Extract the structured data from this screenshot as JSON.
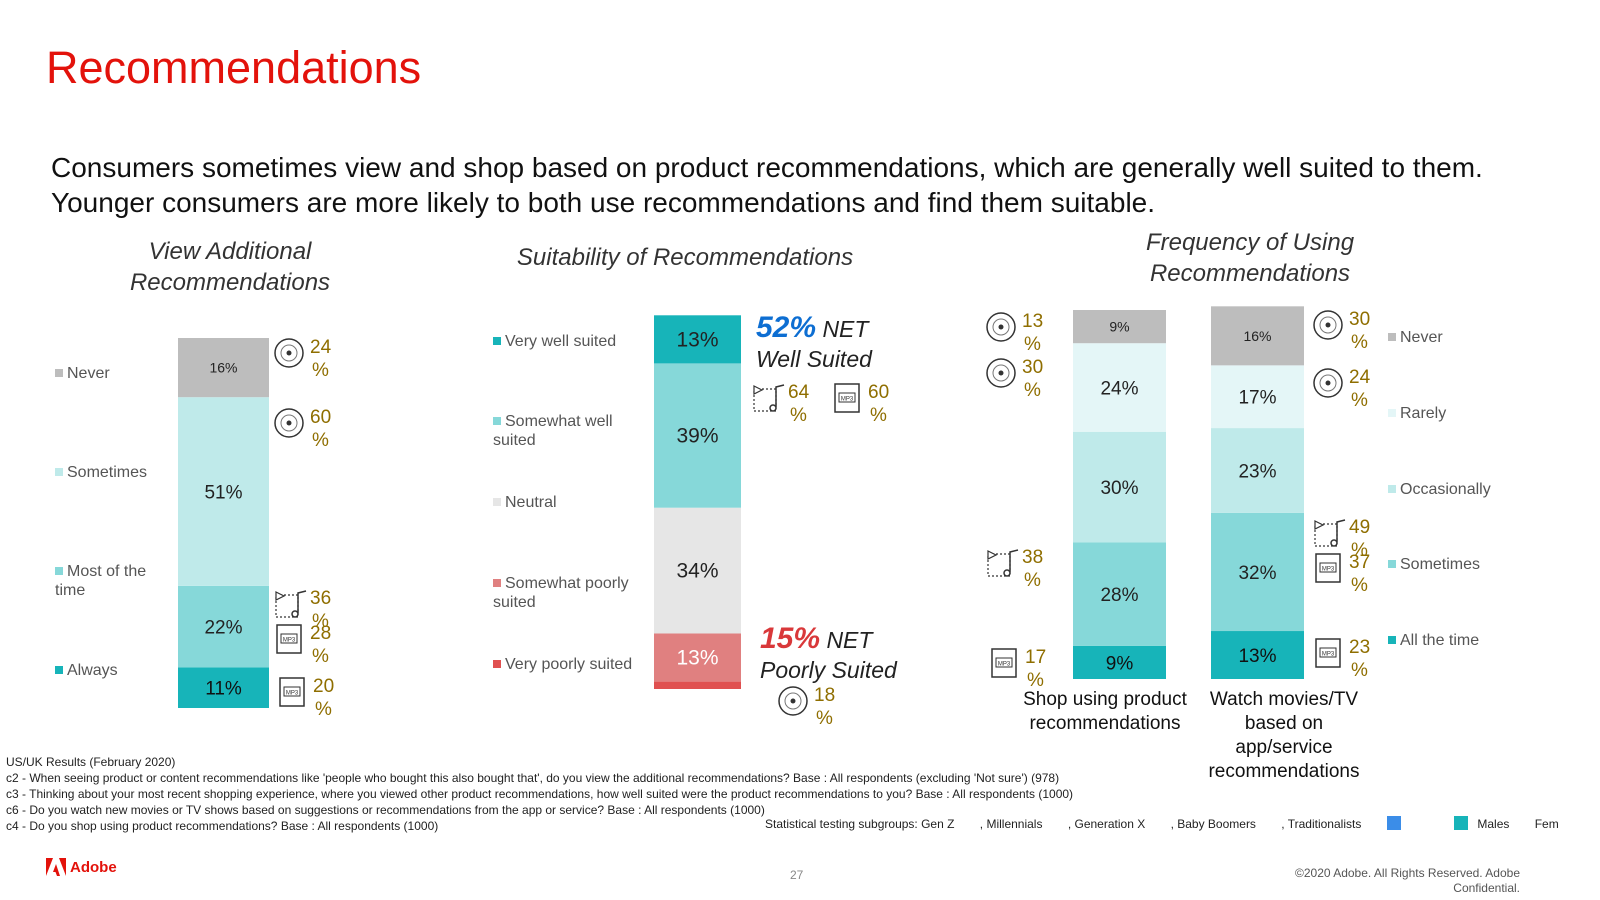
{
  "title": "Recommendations",
  "subtitle": "Consumers sometimes view and shop based on product recommendations, which are generally well suited to them.  Younger consumers are more likely to both use recommendations and find them suitable.",
  "colors": {
    "title_red": "#e3120b",
    "net_blue": "#0d6ed2",
    "net_red": "#d9383a",
    "annotation_gold": "#8f6e00",
    "never_gray": "#bdbdbd",
    "rarely": "#e4f6f7",
    "light_teal": "#bfeaea",
    "mid_teal": "#86d8d9",
    "dark_teal": "#17b4b9",
    "neutral": "#e6e6e6",
    "somewhat_poor": "#e08080",
    "very_poor": "#e05050"
  },
  "charts": {
    "view": {
      "title": "View Additional Recommendations",
      "legend": [
        "Never",
        "Sometimes",
        "Most of the time",
        "Always"
      ]
    },
    "suitability": {
      "title": "Suitability of Recommendations",
      "legend": [
        "Very well suited",
        "Somewhat well suited",
        "Neutral",
        "Somewhat poorly suited",
        "Very poorly suited"
      ],
      "net_well_pct": "52%",
      "net_well_text1": "NET",
      "net_well_text2": "Well Suited",
      "net_poor_pct": "15%",
      "net_poor_text1": "NET",
      "net_poor_text2": "Poorly Suited"
    },
    "frequency": {
      "title": "Frequency of Using Recommendations",
      "legend": [
        "Never",
        "Rarely",
        "Occasionally",
        "Sometimes",
        "All the time"
      ],
      "categories": [
        "Shop using product recommendations",
        "Watch movies/TV based on app/service recommendations"
      ]
    }
  },
  "chart_data": [
    {
      "type": "bar",
      "stacked": true,
      "title": "View Additional Recommendations",
      "series": [
        {
          "name": "Always",
          "values": [
            11
          ],
          "label": "11%"
        },
        {
          "name": "Most of the time",
          "values": [
            22
          ],
          "label": "22%"
        },
        {
          "name": "Sometimes",
          "values": [
            51
          ],
          "label": "51%"
        },
        {
          "name": "Never",
          "values": [
            16
          ],
          "label": "16%"
        }
      ],
      "annotations": [
        {
          "segment": "Never",
          "icon": "vinyl-record-icon",
          "text": "24 %"
        },
        {
          "segment": "Sometimes",
          "icon": "vinyl-record-icon",
          "text": "60 %"
        },
        {
          "segment": "Most of the time",
          "icon": "cassette-icon",
          "text": "36 %"
        },
        {
          "segment": "Most of the time",
          "icon": "mp3-player-icon",
          "text": "28 %"
        },
        {
          "segment": "Always",
          "icon": "mp3-player-icon",
          "text": "20 %"
        }
      ]
    },
    {
      "type": "bar",
      "stacked": true,
      "title": "Suitability of Recommendations",
      "series": [
        {
          "name": "Very poorly suited",
          "values": [
            2
          ],
          "label": ""
        },
        {
          "name": "Somewhat poorly suited",
          "values": [
            13
          ],
          "label": "13%"
        },
        {
          "name": "Neutral",
          "values": [
            34
          ],
          "label": "34%"
        },
        {
          "name": "Somewhat well suited",
          "values": [
            39
          ],
          "label": "39%"
        },
        {
          "name": "Very well suited",
          "values": [
            13
          ],
          "label": "13%"
        }
      ],
      "annotations": [
        {
          "segment": "NET Well Suited",
          "icon": "cassette-icon",
          "text": "64 %"
        },
        {
          "segment": "NET Well Suited",
          "icon": "mp3-player-icon",
          "text": "60 %"
        },
        {
          "segment": "NET Poorly Suited",
          "icon": "vinyl-record-icon",
          "text": "18 %"
        }
      ]
    },
    {
      "type": "bar",
      "stacked": true,
      "title": "Frequency of Using Recommendations",
      "categories": [
        "Shop using product recommendations",
        "Watch movies/TV based on app/service recommendations"
      ],
      "series": [
        {
          "name": "All the time",
          "values": [
            9,
            13
          ],
          "labels": [
            "9%",
            "13%"
          ]
        },
        {
          "name": "Sometimes",
          "values": [
            28,
            32
          ],
          "labels": [
            "28%",
            "32%"
          ]
        },
        {
          "name": "Occasionally",
          "values": [
            30,
            23
          ],
          "labels": [
            "30%",
            "23%"
          ]
        },
        {
          "name": "Rarely",
          "values": [
            24,
            17
          ],
          "labels": [
            "24%",
            "17%"
          ]
        },
        {
          "name": "Never",
          "values": [
            9,
            16
          ],
          "labels": [
            "9%",
            "16%"
          ]
        }
      ],
      "annotations": [
        {
          "category": 0,
          "segment": "Never",
          "icon": "vinyl-record-icon",
          "text": "13 %"
        },
        {
          "category": 0,
          "segment": "Rarely",
          "icon": "vinyl-record-icon",
          "text": "30 %"
        },
        {
          "category": 0,
          "segment": "Sometimes",
          "icon": "cassette-icon",
          "text": "38 %"
        },
        {
          "category": 0,
          "segment": "All the time",
          "icon": "mp3-player-icon",
          "text": "17 %"
        },
        {
          "category": 1,
          "segment": "Never",
          "icon": "vinyl-record-icon",
          "text": "30 %"
        },
        {
          "category": 1,
          "segment": "Rarely",
          "icon": "vinyl-record-icon",
          "text": "24 %"
        },
        {
          "category": 1,
          "segment": "Sometimes",
          "icon": "cassette-icon",
          "text": "49 %"
        },
        {
          "category": 1,
          "segment": "Sometimes",
          "icon": "mp3-player-icon",
          "text": "37 %"
        },
        {
          "category": 1,
          "segment": "All the time",
          "icon": "mp3-player-icon",
          "text": "23 %"
        }
      ]
    }
  ],
  "footnotes": {
    "results": "US/UK Results (February 2020)",
    "c2": "c2 - When seeing product or content recommendations like 'people who bought this also bought that', do you view the additional recommendations? Base : All respondents (excluding 'Not sure') (978)",
    "c3": "c3 - Thinking about your most recent shopping experience, where you viewed other product recommendations, how well suited were the product recommendations to you? Base : All respondents (1000)",
    "c6": "c6 - Do you watch new movies or TV shows based on suggestions or recommendations from the app or service? Base : All respondents (1000)",
    "c4": "c4 - Do you shop using product recommendations? Base : All respondents (1000)"
  },
  "subgroups": {
    "label": "Statistical testing subgroups: Gen Z",
    "items": [
      ", Millennials",
      ", Generation X",
      ", Baby Boomers",
      ", Traditionalists",
      "Males",
      "Fem"
    ]
  },
  "page_number": "27",
  "copyright": "©2020 Adobe. All Rights Reserved. Adobe Confidential.",
  "logo_text": "Adobe"
}
